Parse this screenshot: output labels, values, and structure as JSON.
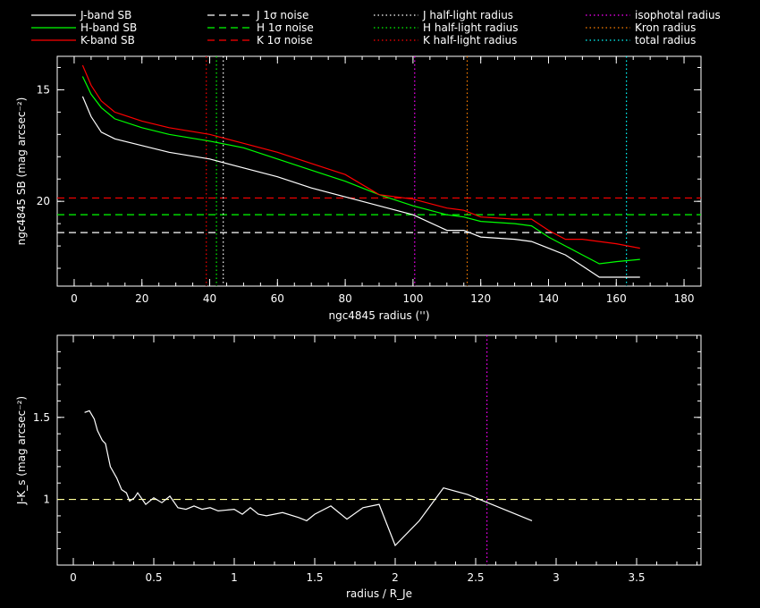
{
  "legend": [
    {
      "label": "J-band SB",
      "color": "#ffffff",
      "dash": "solid"
    },
    {
      "label": "H-band SB",
      "color": "#00ff00",
      "dash": "solid"
    },
    {
      "label": "K-band SB",
      "color": "#ff0000",
      "dash": "solid"
    },
    {
      "label": "J 1σ noise",
      "color": "#ffffff",
      "dash": "dashed"
    },
    {
      "label": "H 1σ noise",
      "color": "#00ff00",
      "dash": "dashed"
    },
    {
      "label": "K 1σ noise",
      "color": "#ff0000",
      "dash": "dashed"
    },
    {
      "label": "J half-light radius",
      "color": "#ffffff",
      "dash": "dotted"
    },
    {
      "label": "H half-light radius",
      "color": "#00ff00",
      "dash": "dotted"
    },
    {
      "label": "K half-light radius",
      "color": "#ff0000",
      "dash": "dotted"
    },
    {
      "label": "isophotal radius",
      "color": "#ff00ff",
      "dash": "dotted"
    },
    {
      "label": "Kron radius",
      "color": "#ff8000",
      "dash": "dotted"
    },
    {
      "label": "total radius",
      "color": "#00ffff",
      "dash": "dotted"
    }
  ],
  "chart_data": [
    {
      "type": "line",
      "xlabel": "ngc4845 radius ('')",
      "ylabel": "ngc4845 SB (mag arcsec⁻²)",
      "xlim": [
        -5,
        185
      ],
      "ylim": [
        23.8,
        13.5
      ],
      "y_inverted": true,
      "xticks": [
        0,
        20,
        40,
        60,
        80,
        100,
        120,
        140,
        160,
        180
      ],
      "yticks": [
        15,
        20
      ],
      "series": [
        {
          "name": "J-band SB",
          "color": "#ffffff",
          "x": [
            2.5,
            5,
            8,
            12,
            20,
            28,
            40,
            50,
            60,
            70,
            80,
            90,
            100,
            110,
            115,
            120,
            130,
            135,
            140,
            145,
            150,
            155,
            160,
            167
          ],
          "y": [
            15.3,
            16.2,
            16.9,
            17.2,
            17.5,
            17.8,
            18.1,
            18.5,
            18.9,
            19.4,
            19.8,
            20.2,
            20.6,
            21.3,
            21.3,
            21.6,
            21.7,
            21.8,
            22.1,
            22.4,
            22.9,
            23.4,
            23.4,
            23.4
          ]
        },
        {
          "name": "H-band SB",
          "color": "#00ff00",
          "x": [
            2.5,
            5,
            8,
            12,
            20,
            28,
            40,
            50,
            60,
            70,
            80,
            90,
            100,
            110,
            115,
            120,
            130,
            135,
            140,
            145,
            150,
            155,
            160,
            167
          ],
          "y": [
            14.4,
            15.2,
            15.8,
            16.3,
            16.7,
            17.0,
            17.3,
            17.6,
            18.1,
            18.6,
            19.1,
            19.7,
            20.2,
            20.6,
            20.7,
            20.9,
            21.0,
            21.1,
            21.6,
            22.0,
            22.4,
            22.8,
            22.7,
            22.6
          ]
        },
        {
          "name": "K-band SB",
          "color": "#ff0000",
          "x": [
            2.5,
            5,
            8,
            12,
            20,
            28,
            40,
            50,
            60,
            70,
            80,
            90,
            100,
            110,
            115,
            120,
            130,
            135,
            140,
            145,
            150,
            155,
            160,
            167
          ],
          "y": [
            13.9,
            14.8,
            15.5,
            16.0,
            16.4,
            16.7,
            17.0,
            17.4,
            17.8,
            18.3,
            18.8,
            19.7,
            19.9,
            20.3,
            20.4,
            20.7,
            20.8,
            20.8,
            21.3,
            21.7,
            21.7,
            21.8,
            21.9,
            22.1
          ]
        }
      ],
      "hlines": [
        {
          "name": "J 1σ noise",
          "color": "#ffffff",
          "y": 21.4
        },
        {
          "name": "H 1σ noise",
          "color": "#00ff00",
          "y": 20.6
        },
        {
          "name": "K 1σ noise",
          "color": "#ff0000",
          "y": 19.85
        }
      ],
      "vlines": [
        {
          "name": "K half-light radius",
          "color": "#ff0000",
          "x": 39
        },
        {
          "name": "H half-light radius",
          "color": "#00ff00",
          "x": 42
        },
        {
          "name": "J half-light radius",
          "color": "#ffffff",
          "x": 44
        },
        {
          "name": "isophotal radius",
          "color": "#ff00ff",
          "x": 100.5
        },
        {
          "name": "Kron radius",
          "color": "#ff8000",
          "x": 116
        },
        {
          "name": "total radius",
          "color": "#00ffff",
          "x": 163
        }
      ]
    },
    {
      "type": "line",
      "xlabel": "radius / R_Je",
      "ylabel": "J-K_s (mag arcsec⁻²)",
      "xlim": [
        -0.1,
        3.9
      ],
      "ylim": [
        0.6,
        2.0
      ],
      "xticks": [
        0,
        0.5,
        1,
        1.5,
        2,
        2.5,
        3,
        3.5
      ],
      "yticks": [
        1,
        1.5
      ],
      "series": [
        {
          "name": "J-K_s",
          "color": "#ffffff",
          "x": [
            0.07,
            0.1,
            0.13,
            0.15,
            0.18,
            0.2,
            0.23,
            0.27,
            0.3,
            0.33,
            0.35,
            0.38,
            0.4,
            0.45,
            0.5,
            0.55,
            0.6,
            0.65,
            0.7,
            0.75,
            0.8,
            0.85,
            0.9,
            1.0,
            1.05,
            1.1,
            1.15,
            1.2,
            1.3,
            1.4,
            1.45,
            1.5,
            1.6,
            1.7,
            1.8,
            1.9,
            2.0,
            2.15,
            2.3,
            2.45,
            2.55,
            2.7,
            2.85
          ],
          "y": [
            1.53,
            1.54,
            1.49,
            1.42,
            1.36,
            1.34,
            1.2,
            1.13,
            1.06,
            1.04,
            0.99,
            1.01,
            1.04,
            0.97,
            1.01,
            0.98,
            1.02,
            0.95,
            0.94,
            0.96,
            0.94,
            0.95,
            0.93,
            0.94,
            0.91,
            0.95,
            0.91,
            0.9,
            0.92,
            0.89,
            0.87,
            0.91,
            0.96,
            0.88,
            0.95,
            0.97,
            0.72,
            0.87,
            1.07,
            1.03,
            0.99,
            0.93,
            0.87
          ]
        }
      ],
      "hlines": [
        {
          "name": "J-K reference",
          "color": "#ffff99",
          "y": 1.0
        }
      ],
      "vlines": [
        {
          "name": "isophotal radius",
          "color": "#ff00ff",
          "x": 2.57
        }
      ]
    }
  ]
}
